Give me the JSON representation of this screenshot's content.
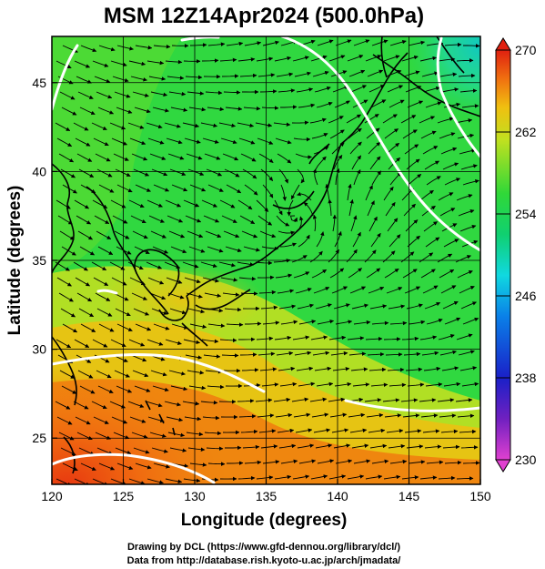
{
  "title": "MSM 12Z14Apr2024 (500.0hPa)",
  "x_axis": {
    "label": "Longitude (degrees)",
    "range": [
      120,
      150
    ],
    "ticks": [
      "120",
      "125",
      "130",
      "135",
      "140",
      "145",
      "150"
    ]
  },
  "y_axis": {
    "label": "Latitude  (degrees)",
    "range": [
      22.4,
      47.6
    ],
    "ticks": [
      "25",
      "30",
      "35",
      "40",
      "45"
    ]
  },
  "colorbar": {
    "range": [
      230,
      270
    ],
    "ticks": [
      "270",
      "262",
      "254",
      "246",
      "238",
      "230"
    ],
    "colors": [
      "#e040d0",
      "#7020c0",
      "#1a20c8",
      "#0a80e8",
      "#10d8e0",
      "#10d070",
      "#30d838",
      "#c0e020",
      "#f0c010",
      "#f07010",
      "#e02010"
    ]
  },
  "credits": {
    "line1": "Drawing by DCL (https://www.gfd-dennou.org/library/dcl/)",
    "line2": "Data from http://database.rish.kyoto-u.ac.jp/arch/jmadata/"
  }
}
